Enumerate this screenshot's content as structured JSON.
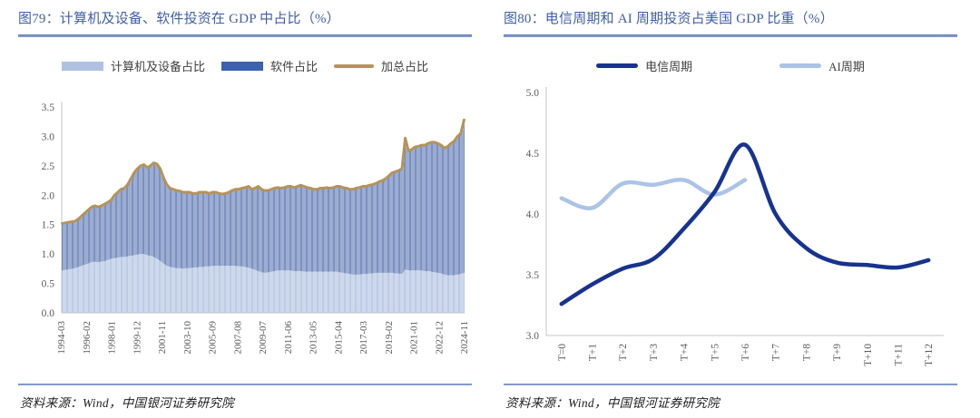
{
  "page": {
    "background": "#ffffff"
  },
  "styles": {
    "title_color": "#3e5fa7",
    "rule_color": "#8099cb",
    "axis_color": "#c6c6c6",
    "tick_label_color": "#595959",
    "legend_text_color": "#404040",
    "source_text_color": "#1f1f1f"
  },
  "figures": [
    {
      "id": "79",
      "title": "图79：计算机及设备、软件投资在 GDP 中占比（%）",
      "legend": [
        {
          "label": "计算机及设备占比",
          "color": "#b0c0e2",
          "shape": "rect"
        },
        {
          "label": "软件占比",
          "color": "#3a62ae",
          "shape": "rect"
        },
        {
          "label": "加总占比",
          "color": "#b5935a",
          "shape": "line"
        }
      ],
      "source": "资料来源：Wind，中国银河证券研究院"
    },
    {
      "id": "80",
      "title": "图80：电信周期和 AI 周期投资占美国 GDP 比重（%）",
      "legend": [
        {
          "label": "电信周期",
          "color": "#17338f",
          "shape": "line-thick"
        },
        {
          "label": "AI周期",
          "color": "#abc3e7",
          "shape": "line-thick"
        }
      ],
      "source": "资料来源：Wind，中国银河证券研究院"
    }
  ],
  "chart_data": [
    {
      "type": "bar",
      "subtype": "stacked-bars-with-total-line",
      "title": "计算机及设备、软件投资在 GDP 中占比（%）",
      "x_start": "1994-03",
      "x_end": "2024-11",
      "frequency": "quarterly",
      "x_tick_labels": [
        "1994-03",
        "1996-02",
        "1998-01",
        "1999-12",
        "2001-11",
        "2003-10",
        "2005-09",
        "2007-08",
        "2009-07",
        "2011-06",
        "2013-05",
        "2015-04",
        "2017-03",
        "2019-02",
        "2021-01",
        "2022-12",
        "2024-11"
      ],
      "ylim": [
        0,
        3.5
      ],
      "ytick_step": 0.5,
      "grid": false,
      "legend_position": "top",
      "series": [
        {
          "name": "计算机及设备占比",
          "type": "bar",
          "color": "#aebfe0",
          "values": [
            0.72,
            0.73,
            0.74,
            0.75,
            0.76,
            0.78,
            0.8,
            0.82,
            0.84,
            0.86,
            0.87,
            0.86,
            0.87,
            0.88,
            0.9,
            0.92,
            0.93,
            0.94,
            0.95,
            0.95,
            0.96,
            0.97,
            0.98,
            0.99,
            1.0,
            1.0,
            0.98,
            0.97,
            0.95,
            0.92,
            0.88,
            0.84,
            0.8,
            0.78,
            0.77,
            0.76,
            0.76,
            0.75,
            0.76,
            0.76,
            0.77,
            0.77,
            0.78,
            0.78,
            0.79,
            0.79,
            0.8,
            0.8,
            0.8,
            0.8,
            0.8,
            0.8,
            0.8,
            0.8,
            0.79,
            0.79,
            0.78,
            0.77,
            0.75,
            0.73,
            0.71,
            0.69,
            0.68,
            0.69,
            0.7,
            0.71,
            0.72,
            0.72,
            0.72,
            0.72,
            0.72,
            0.71,
            0.71,
            0.71,
            0.7,
            0.7,
            0.7,
            0.7,
            0.7,
            0.7,
            0.7,
            0.7,
            0.7,
            0.7,
            0.7,
            0.69,
            0.68,
            0.67,
            0.66,
            0.65,
            0.65,
            0.65,
            0.66,
            0.66,
            0.67,
            0.67,
            0.68,
            0.68,
            0.68,
            0.68,
            0.68,
            0.68,
            0.67,
            0.67,
            0.66,
            0.74,
            0.72,
            0.72,
            0.72,
            0.72,
            0.72,
            0.71,
            0.71,
            0.7,
            0.69,
            0.68,
            0.67,
            0.65,
            0.64,
            0.64,
            0.64,
            0.65,
            0.66,
            0.68
          ]
        },
        {
          "name": "软件占比",
          "type": "bar",
          "color": "#5b76b2",
          "values": [
            0.8,
            0.8,
            0.8,
            0.8,
            0.8,
            0.82,
            0.85,
            0.88,
            0.91,
            0.94,
            0.95,
            0.94,
            0.95,
            0.97,
            0.98,
            1.0,
            1.07,
            1.11,
            1.15,
            1.17,
            1.22,
            1.31,
            1.4,
            1.46,
            1.5,
            1.52,
            1.49,
            1.53,
            1.6,
            1.61,
            1.57,
            1.46,
            1.38,
            1.34,
            1.33,
            1.32,
            1.31,
            1.3,
            1.29,
            1.29,
            1.26,
            1.26,
            1.27,
            1.27,
            1.26,
            1.24,
            1.25,
            1.25,
            1.23,
            1.22,
            1.23,
            1.25,
            1.28,
            1.3,
            1.31,
            1.33,
            1.35,
            1.38,
            1.35,
            1.39,
            1.44,
            1.41,
            1.4,
            1.39,
            1.4,
            1.41,
            1.41,
            1.4,
            1.41,
            1.43,
            1.43,
            1.42,
            1.44,
            1.46,
            1.45,
            1.43,
            1.42,
            1.4,
            1.4,
            1.42,
            1.42,
            1.43,
            1.42,
            1.43,
            1.45,
            1.46,
            1.45,
            1.45,
            1.44,
            1.45,
            1.47,
            1.48,
            1.49,
            1.49,
            1.5,
            1.51,
            1.52,
            1.55,
            1.57,
            1.6,
            1.65,
            1.7,
            1.73,
            1.75,
            1.79,
            2.23,
            2.03,
            2.06,
            2.1,
            2.11,
            2.13,
            2.14,
            2.17,
            2.2,
            2.21,
            2.2,
            2.18,
            2.15,
            2.19,
            2.24,
            2.28,
            2.35,
            2.39,
            2.6
          ]
        },
        {
          "name": "加总占比",
          "type": "line",
          "color": "#b5935a",
          "derived": "sum of the two stacked bar series"
        }
      ]
    },
    {
      "type": "line",
      "title": "电信周期和 AI 周期投资占美国 GDP 比重（%）",
      "categories": [
        "T=0",
        "T+1",
        "T+2",
        "T+3",
        "T+4",
        "T+5",
        "T+6",
        "T+7",
        "T+8",
        "T+9",
        "T+10",
        "T+11",
        "T+12"
      ],
      "ylim": [
        3.0,
        5.0
      ],
      "ytick_step": 0.5,
      "grid": false,
      "legend_position": "top",
      "series": [
        {
          "name": "电信周期",
          "color": "#17338f",
          "values": [
            3.26,
            3.42,
            3.55,
            3.63,
            3.88,
            4.18,
            4.57,
            4.0,
            3.72,
            3.6,
            3.58,
            3.56,
            3.62
          ]
        },
        {
          "name": "AI周期",
          "color": "#abc3e7",
          "values": [
            4.13,
            4.05,
            4.25,
            4.24,
            4.28,
            4.16,
            4.28
          ]
        }
      ]
    }
  ]
}
